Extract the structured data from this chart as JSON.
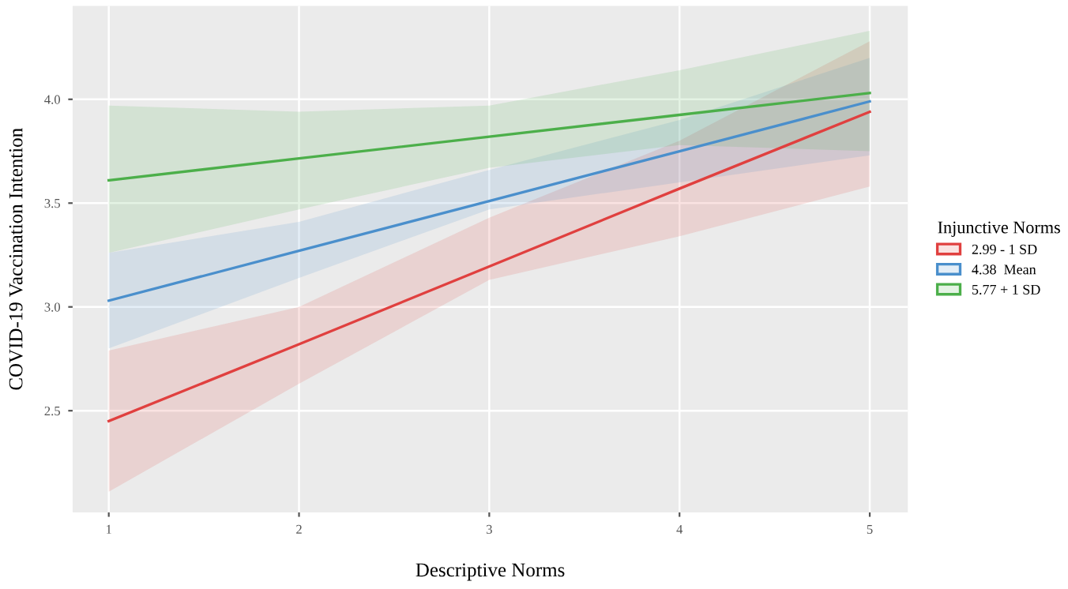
{
  "chart_data": {
    "type": "line",
    "xlabel": "Descriptive Norms",
    "ylabel": "COVID-19 Vaccination Intention",
    "legend_title": "Injunctive Norms",
    "x": [
      1,
      2,
      3,
      4,
      5
    ],
    "series": [
      {
        "name": "2.99 - 1 SD",
        "color": "#e0403f",
        "values": [
          2.45,
          2.82,
          3.195,
          3.57,
          3.94
        ],
        "lower": [
          2.11,
          2.63,
          3.13,
          3.34,
          3.58
        ],
        "upper": [
          2.79,
          3.0,
          3.43,
          3.8,
          4.28
        ]
      },
      {
        "name": "4.38  Mean",
        "color": "#4a8fcc",
        "values": [
          3.03,
          3.27,
          3.51,
          3.75,
          3.99
        ],
        "lower": [
          2.8,
          3.14,
          3.47,
          3.6,
          3.73
        ],
        "upper": [
          3.26,
          3.41,
          3.66,
          3.9,
          4.2
        ]
      },
      {
        "name": "5.77 + 1 SD",
        "color": "#4caf4a",
        "values": [
          3.61,
          3.715,
          3.82,
          3.925,
          4.03
        ],
        "lower": [
          3.26,
          3.47,
          3.67,
          3.78,
          3.75
        ],
        "upper": [
          3.97,
          3.94,
          3.97,
          4.14,
          4.33
        ]
      }
    ],
    "xlim": [
      0.81,
      5.2
    ],
    "ylim": [
      2.01,
      4.45
    ],
    "xticks": [
      1,
      2,
      3,
      4,
      5
    ],
    "yticks": [
      {
        "value": 2.5,
        "label": "2.5"
      },
      {
        "value": 3.0,
        "label": "3.0"
      },
      {
        "value": 3.5,
        "label": "3.5"
      },
      {
        "value": 4.0,
        "label": "4.0"
      }
    ],
    "grid": true,
    "legend": "right",
    "line_style": "solid",
    "marker": "none"
  }
}
